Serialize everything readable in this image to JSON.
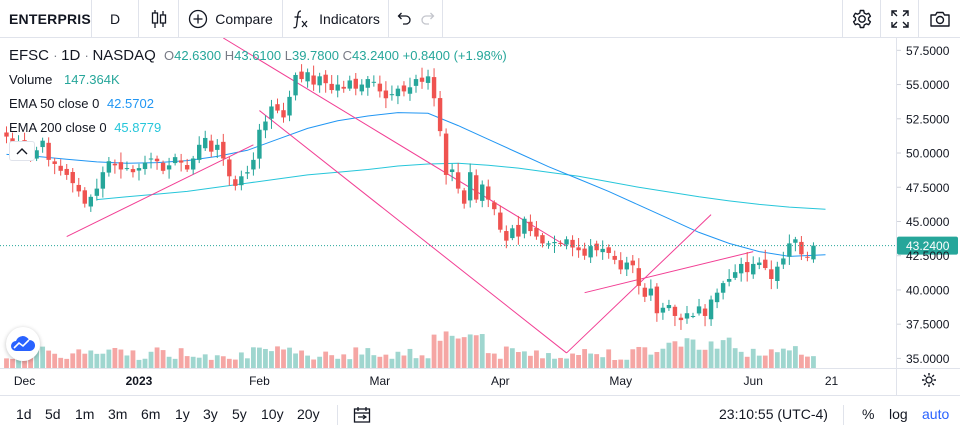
{
  "toolbar": {
    "symbol": "ENTERPRISE",
    "interval": "D",
    "compare_label": "Compare",
    "indicators_label": "Indicators"
  },
  "legend": {
    "symbol": "EFSC",
    "interval": "1D",
    "exchange": "NASDAQ",
    "open_label": "O",
    "open": "42.6300",
    "high_label": "H",
    "high": "43.6100",
    "low_label": "L",
    "low": "39.7800",
    "close_label": "C",
    "close": "43.2400",
    "change": "+0.8400 (+1.98%)",
    "volume_label": "Volume",
    "volume": "147.364K",
    "ema50_label": "EMA 50 close 0",
    "ema50": "42.5702",
    "ema200_label": "EMA 200 close 0",
    "ema200": "45.8779"
  },
  "bottom": {
    "ranges": [
      "1d",
      "5d",
      "1m",
      "3m",
      "6m",
      "1y",
      "3y",
      "5y",
      "10y",
      "20y"
    ],
    "time": "23:10:55 (UTC-4)",
    "percent": "%",
    "log": "log",
    "auto": "auto"
  },
  "colors": {
    "up": "#26a69a",
    "down": "#ef5350",
    "ema50": "#2196f3",
    "ema200": "#26c6da",
    "trendline": "#f23f94",
    "price_label_bg": "#26a69a",
    "accent": "#2962ff"
  },
  "icons": [
    "candles-icon",
    "plus-circle-icon",
    "fx-icon",
    "undo-icon",
    "redo-icon",
    "gear-icon",
    "fullscreen-icon",
    "camera-icon",
    "calendar-icon",
    "settings-icon"
  ],
  "chart_data": {
    "type": "candlestick",
    "ylim": [
      34.3,
      58.4
    ],
    "y_ticks": [
      "57.5000",
      "55.0000",
      "52.5000",
      "50.0000",
      "47.5000",
      "45.0000",
      "42.5000",
      "40.0000",
      "37.5000",
      "35.0000"
    ],
    "x_ticks": [
      {
        "label": "Dec",
        "bold": false,
        "index": 3
      },
      {
        "label": "2023",
        "bold": true,
        "index": 22
      },
      {
        "label": "Feb",
        "bold": false,
        "index": 42
      },
      {
        "label": "Mar",
        "bold": false,
        "index": 62
      },
      {
        "label": "Apr",
        "bold": false,
        "index": 82
      },
      {
        "label": "May",
        "bold": false,
        "index": 102
      },
      {
        "label": "Jun",
        "bold": false,
        "index": 124
      },
      {
        "label": "21",
        "bold": false,
        "index": 137
      }
    ],
    "last_price": "43.2400",
    "last_price_value": 43.24,
    "closes": [
      51.2,
      50.4,
      50.8,
      50.1,
      49.6,
      50.2,
      50.9,
      49.5,
      49.2,
      48.7,
      48.4,
      47.8,
      47.2,
      46.3,
      46.8,
      47.4,
      48.6,
      49.4,
      49.1,
      48.8,
      48.9,
      48.6,
      48.9,
      49.3,
      49.6,
      49.4,
      48.7,
      49.1,
      49.7,
      49.3,
      48.8,
      49.6,
      50.6,
      51.1,
      50.1,
      50.6,
      49.6,
      48.3,
      47.6,
      48.3,
      48.6,
      49.5,
      51.7,
      52.3,
      53.4,
      53.1,
      52.6,
      54.1,
      55.7,
      55.4,
      55.9,
      55.0,
      55.6,
      55.1,
      54.6,
      55.0,
      54.7,
      55.3,
      54.7,
      55.0,
      55.4,
      55.2,
      54.5,
      54.0,
      54.3,
      54.7,
      54.5,
      54.8,
      55.4,
      55.2,
      55.6,
      54.0,
      51.6,
      48.4,
      48.8,
      47.4,
      46.3,
      48.6,
      46.6,
      47.7,
      46.6,
      45.9,
      44.4,
      43.6,
      44.5,
      43.9,
      45.2,
      44.3,
      43.9,
      43.4,
      43.4,
      43.5,
      43.4,
      43.7,
      43.1,
      42.9,
      42.5,
      43.2,
      42.9,
      43.0,
      42.7,
      42.2,
      41.5,
      42.0,
      41.8,
      40.3,
      39.5,
      40.1,
      38.3,
      38.7,
      38.9,
      38.1,
      37.8,
      38.3,
      38.1,
      38.8,
      38.1,
      39.3,
      39.8,
      40.5,
      40.8,
      41.3,
      41.9,
      41.3,
      41.9,
      42.0,
      41.6,
      40.8,
      41.7,
      42.3,
      43.4,
      43.7,
      42.6,
      42.4,
      43.24
    ],
    "ema50": [
      [
        0,
        49.9
      ],
      [
        5,
        49.75
      ],
      [
        10,
        49.55
      ],
      [
        15,
        49.35
      ],
      [
        20,
        49.25
      ],
      [
        25,
        49.3
      ],
      [
        30,
        49.45
      ],
      [
        35,
        49.75
      ],
      [
        40,
        50.2
      ],
      [
        45,
        51.0
      ],
      [
        50,
        51.8
      ],
      [
        55,
        52.35
      ],
      [
        60,
        52.7
      ],
      [
        65,
        52.95
      ],
      [
        70,
        52.9
      ],
      [
        75,
        52.0
      ],
      [
        80,
        51.0
      ],
      [
        85,
        50.0
      ],
      [
        90,
        49.0
      ],
      [
        95,
        48.1
      ],
      [
        100,
        47.2
      ],
      [
        105,
        46.2
      ],
      [
        110,
        45.2
      ],
      [
        115,
        44.2
      ],
      [
        120,
        43.4
      ],
      [
        125,
        42.8
      ],
      [
        130,
        42.45
      ],
      [
        136,
        42.57
      ]
    ],
    "ema200": [
      [
        15,
        46.6
      ],
      [
        20,
        46.8
      ],
      [
        25,
        47.0
      ],
      [
        30,
        47.2
      ],
      [
        35,
        47.5
      ],
      [
        40,
        47.8
      ],
      [
        45,
        48.1
      ],
      [
        50,
        48.4
      ],
      [
        55,
        48.6
      ],
      [
        60,
        48.8
      ],
      [
        65,
        49.05
      ],
      [
        70,
        49.2
      ],
      [
        75,
        49.25
      ],
      [
        80,
        49.1
      ],
      [
        85,
        48.9
      ],
      [
        90,
        48.6
      ],
      [
        95,
        48.3
      ],
      [
        100,
        47.9
      ],
      [
        105,
        47.5
      ],
      [
        110,
        47.15
      ],
      [
        115,
        46.8
      ],
      [
        120,
        46.5
      ],
      [
        125,
        46.25
      ],
      [
        130,
        46.05
      ],
      [
        136,
        45.9
      ]
    ],
    "trendlines": [
      [
        [
          10,
          43.9
        ],
        [
          41,
          50.6
        ]
      ],
      [
        [
          36,
          58.4
        ],
        [
          93,
          43.2
        ]
      ],
      [
        [
          42,
          53.1
        ],
        [
          93,
          35.4
        ]
      ],
      [
        [
          93,
          35.4
        ],
        [
          117,
          45.5
        ]
      ],
      [
        [
          96,
          39.8
        ],
        [
          124,
          42.8
        ]
      ]
    ]
  }
}
